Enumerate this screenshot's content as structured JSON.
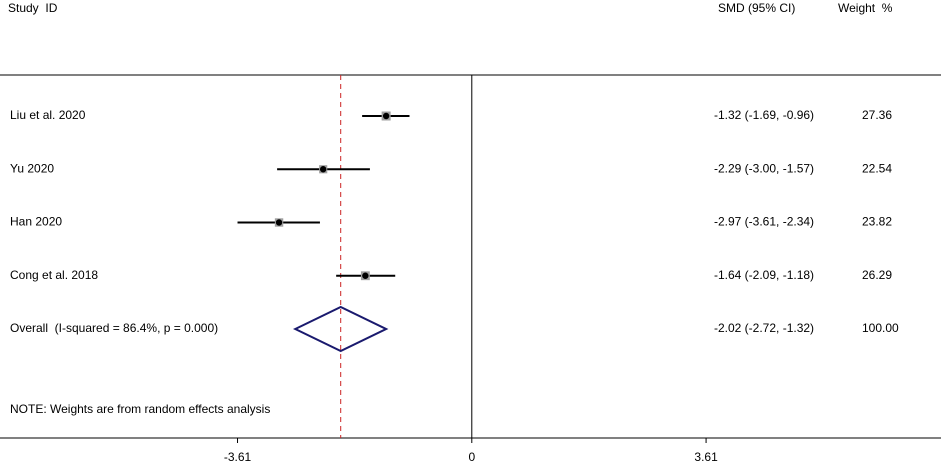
{
  "chart_data": {
    "type": "forest",
    "columns": {
      "study": "Study  ID",
      "estimate": "SMD (95% CI)",
      "weight": "Weight  %"
    },
    "studies": [
      {
        "label": "Liu et al. 2020",
        "value": -1.32,
        "lower": -1.69,
        "upper": -0.96,
        "value_label": "-1.32 (-1.69, -0.96)",
        "weight": 27.36
      },
      {
        "label": "Yu 2020",
        "value": -2.29,
        "lower": -3.0,
        "upper": -1.57,
        "value_label": "-2.29 (-3.00, -1.57)",
        "weight": 22.54
      },
      {
        "label": "Han 2020",
        "value": -2.97,
        "lower": -3.61,
        "upper": -2.34,
        "value_label": "-2.97 (-3.61, -2.34)",
        "weight": 23.82
      },
      {
        "label": "Cong et al. 2018",
        "value": -1.64,
        "lower": -2.09,
        "upper": -1.18,
        "value_label": "-1.64 (-2.09, -1.18)",
        "weight": 26.29
      }
    ],
    "overall": {
      "label": "Overall  (I-squared = 86.4%, p = 0.000)",
      "value": -2.02,
      "lower": -2.72,
      "upper": -1.32,
      "value_label": "-2.02 (-2.72, -1.32)",
      "weight": 100,
      "weight_label": "100.00"
    },
    "note": "NOTE: Weights are from random effects analysis",
    "xlim": [
      -7.27,
      7.23
    ],
    "xticks": [
      -3.61,
      0,
      3.61
    ],
    "ci_color": "#000000",
    "box_color": "#a0a0a0",
    "diamond_color": "#1a1a6e",
    "ref_line_color": "#cc2222"
  }
}
